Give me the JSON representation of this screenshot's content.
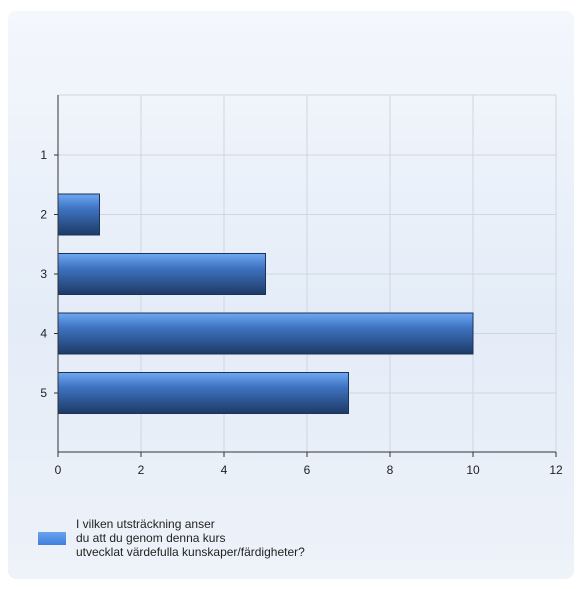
{
  "chart_data": {
    "type": "bar",
    "orientation": "horizontal",
    "categories": [
      "1",
      "2",
      "3",
      "4",
      "5"
    ],
    "series": [
      {
        "name": "I vilken utsträckning anser du att du genom denna kurs utvecklat värdefulla kunskaper/färdigheter?",
        "values": [
          0,
          1,
          5,
          10,
          7
        ]
      }
    ],
    "xlim": [
      0,
      12
    ],
    "x_ticks": [
      "0",
      "2",
      "4",
      "6",
      "8",
      "10",
      "12"
    ],
    "grid": true,
    "legend_position": "bottom-left",
    "legend": {
      "lines": [
        "I vilken utsträckning anser",
        "du att du genom denna kurs",
        "utvecklat värdefulla kunskaper/färdigheter?"
      ]
    },
    "colors": {
      "bar_top": "#6fa8f2",
      "bar_mid": "#3f74c2",
      "bar_bottom": "#1d3a66",
      "grid": "#cfd6e0",
      "axis": "#333333"
    }
  }
}
